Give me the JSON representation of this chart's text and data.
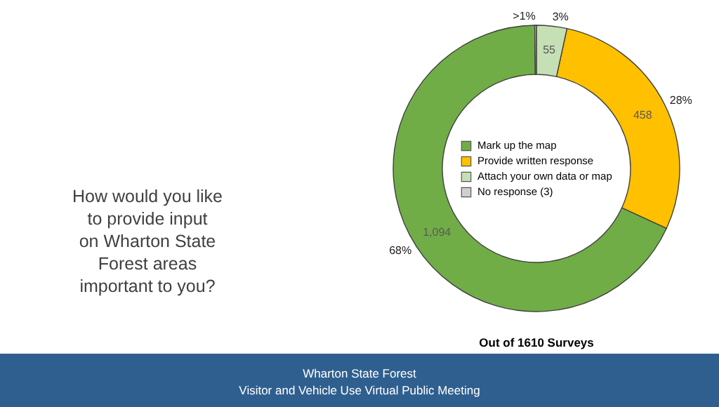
{
  "chart_data": {
    "type": "donut",
    "title": "How would you like to provide input on Wharton State Forest areas important to you?",
    "xlabel": "Out of 1610 Surveys",
    "categories": [
      "Mark up the map",
      "Provide written response",
      "Attach your own data or map",
      "No response (3)"
    ],
    "values": [
      1094,
      458,
      55,
      3
    ],
    "colors": [
      "#70ad47",
      "#ffc000",
      "#c5e0b4",
      "#d0cece"
    ],
    "value_labels": [
      "1,094",
      "458",
      "55",
      null
    ],
    "legend": "center",
    "annotations": [
      {
        "text": "68%",
        "x": "Mark up the map"
      },
      {
        "text": "28%",
        "x": "Provide written response"
      },
      {
        "text": "3%",
        "x": "Attach your own data or map"
      },
      {
        "text": ">1%",
        "x": "No response (3)"
      },
      "Wharton State Forest",
      "Visitor and Vehicle Use Virtual Public Meeting"
    ]
  }
}
